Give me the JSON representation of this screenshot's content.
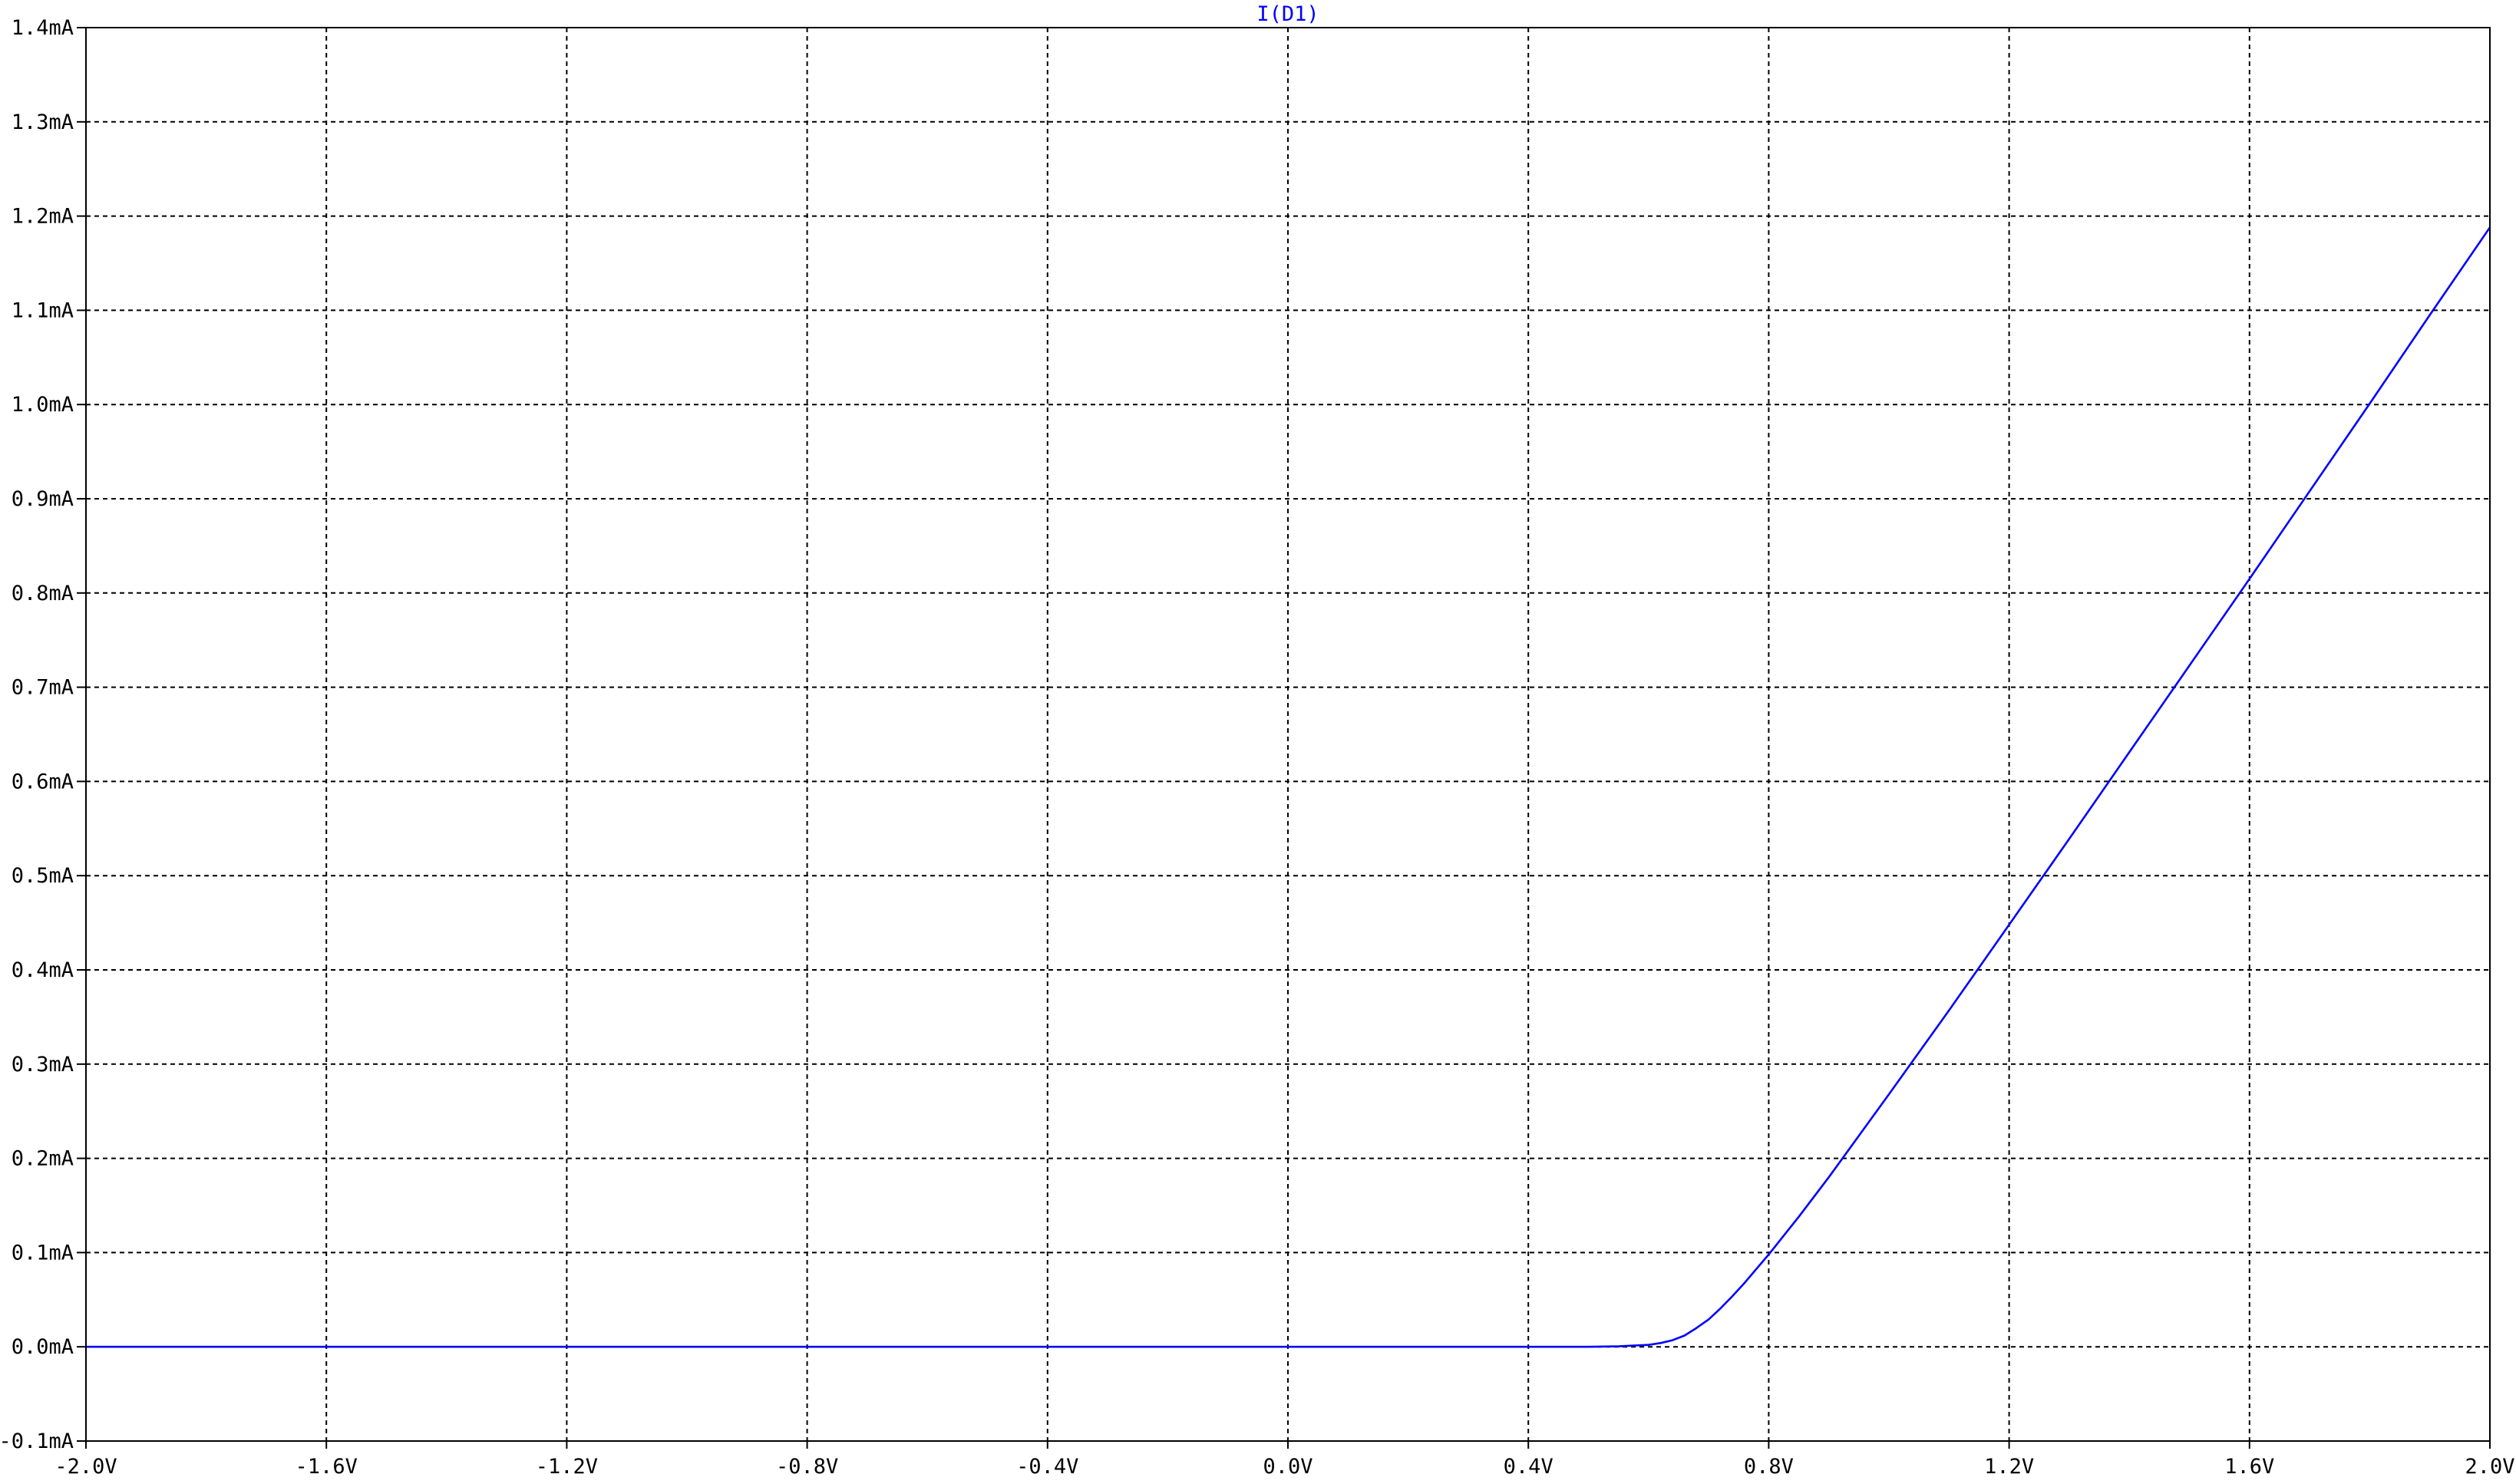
{
  "colors": {
    "background": "#ffffff",
    "grid": "#000000",
    "trace": "#0000ff",
    "text": "#000000"
  },
  "chart_data": {
    "type": "line",
    "title": "I(D1)",
    "xlabel": "",
    "ylabel": "",
    "xlim": [
      -2.0,
      2.0
    ],
    "ylim": [
      -0.1,
      1.4
    ],
    "x_ticks": [
      -2.0,
      -1.6,
      -1.2,
      -0.8,
      -0.4,
      0.0,
      0.4,
      0.8,
      1.2,
      1.6,
      2.0
    ],
    "x_tick_labels": [
      "-2.0V",
      "-1.6V",
      "-1.2V",
      "-0.8V",
      "-0.4V",
      "0.0V",
      "0.4V",
      "0.8V",
      "1.2V",
      "1.6V",
      "2.0V"
    ],
    "y_ticks": [
      1.4,
      1.3,
      1.2,
      1.1,
      1.0,
      0.9,
      0.8,
      0.7,
      0.6,
      0.5,
      0.4,
      0.3,
      0.2,
      0.1,
      0.0,
      -0.1
    ],
    "y_tick_labels": [
      "1.4mA",
      "1.3mA",
      "1.2mA",
      "1.1mA",
      "1.0mA",
      "0.9mA",
      "0.8mA",
      "0.7mA",
      "0.6mA",
      "0.5mA",
      "0.4mA",
      "0.3mA",
      "0.2mA",
      "0.1mA",
      "0.0mA",
      "-0.1mA"
    ],
    "grid": true,
    "series": [
      {
        "name": "I(D1)",
        "x": [
          -2.0,
          -1.6,
          -1.2,
          -0.8,
          -0.4,
          0.0,
          0.4,
          0.5,
          0.55,
          0.6,
          0.62,
          0.64,
          0.66,
          0.68,
          0.7,
          0.72,
          0.74,
          0.76,
          0.78,
          0.8,
          0.85,
          0.9,
          0.95,
          1.0,
          1.1,
          1.2,
          1.3,
          1.4,
          1.5,
          1.6,
          1.7,
          1.8,
          1.9,
          2.0
        ],
        "y": [
          0.0,
          0.0,
          0.0,
          0.0,
          0.0,
          0.0,
          0.0,
          0.0,
          0.0005,
          0.002,
          0.004,
          0.007,
          0.012,
          0.02,
          0.029,
          0.041,
          0.054,
          0.068,
          0.083,
          0.098,
          0.138,
          0.18,
          0.224,
          0.268,
          0.357,
          0.448,
          0.539,
          0.631,
          0.723,
          0.815,
          0.908,
          1.001,
          1.095,
          1.188
        ]
      }
    ]
  }
}
